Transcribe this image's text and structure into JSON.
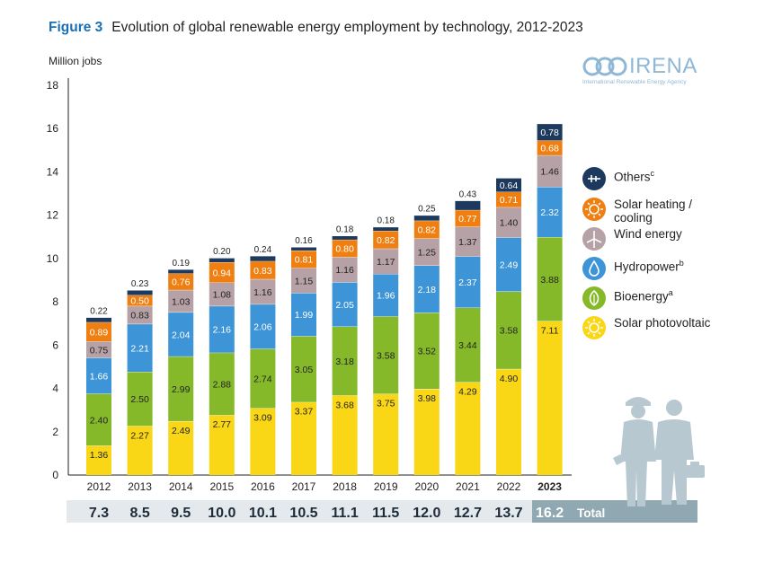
{
  "figure_label": "Figure 3",
  "title": "Evolution of global renewable energy employment by technology, 2012-2023",
  "y_unit_label": "Million jobs",
  "logo": {
    "name": "IRENA",
    "subtitle": "International Renewable Energy Agency"
  },
  "totals_label": "Total",
  "colors": {
    "solar_pv": "#f9d716",
    "bioenergy": "#86b92a",
    "hydropower": "#3d94d6",
    "wind": "#b6a2a6",
    "solar_heating": "#ee7f10",
    "others": "#1d3a5e",
    "totals_band": "#e3e9ec",
    "totals_highlight": "#8fa8b1"
  },
  "legend": [
    {
      "key": "others",
      "label": "Others",
      "sup": "c",
      "icon": "plug-icon"
    },
    {
      "key": "solar_heating",
      "label": "Solar heating / cooling",
      "sup": "",
      "icon": "sun-icon"
    },
    {
      "key": "wind",
      "label": "Wind energy",
      "sup": "",
      "icon": "wind-turbine-icon"
    },
    {
      "key": "hydropower",
      "label": "Hydropower",
      "sup": "b",
      "icon": "water-drop-icon"
    },
    {
      "key": "bioenergy",
      "label": "Bioenergy",
      "sup": "a",
      "icon": "leaf-icon"
    },
    {
      "key": "solar_pv",
      "label": "Solar photovoltaic",
      "sup": "",
      "icon": "sun-outline-icon"
    }
  ],
  "chart_data": {
    "type": "bar",
    "stacked": true,
    "ylabel": "Million jobs",
    "ylim": [
      0,
      18
    ],
    "yticks": [
      0,
      2,
      4,
      6,
      8,
      10,
      12,
      14,
      16,
      18
    ],
    "categories": [
      "2012",
      "2013",
      "2014",
      "2015",
      "2016",
      "2017",
      "2018",
      "2019",
      "2020",
      "2021",
      "2022",
      "2023"
    ],
    "highlight_category": "2023",
    "series": [
      {
        "key": "solar_pv",
        "name": "Solar photovoltaic",
        "values": [
          1.36,
          2.27,
          2.49,
          2.77,
          3.09,
          3.37,
          3.68,
          3.75,
          3.98,
          4.29,
          4.9,
          7.11
        ]
      },
      {
        "key": "bioenergy",
        "name": "Bioenergy",
        "values": [
          2.4,
          2.5,
          2.99,
          2.88,
          2.74,
          3.05,
          3.18,
          3.58,
          3.52,
          3.44,
          3.58,
          3.88
        ]
      },
      {
        "key": "hydropower",
        "name": "Hydropower",
        "values": [
          1.66,
          2.21,
          2.04,
          2.16,
          2.06,
          1.99,
          2.05,
          1.96,
          2.18,
          2.37,
          2.49,
          2.32
        ]
      },
      {
        "key": "wind",
        "name": "Wind energy",
        "values": [
          0.75,
          0.83,
          1.03,
          1.08,
          1.16,
          1.15,
          1.16,
          1.17,
          1.25,
          1.37,
          1.4,
          1.46
        ]
      },
      {
        "key": "solar_heating",
        "name": "Solar heating / cooling",
        "values": [
          0.89,
          0.5,
          0.76,
          0.94,
          0.83,
          0.81,
          0.8,
          0.82,
          0.82,
          0.77,
          0.71,
          0.68
        ]
      },
      {
        "key": "others",
        "name": "Others",
        "values": [
          0.22,
          0.23,
          0.19,
          0.2,
          0.24,
          0.16,
          0.18,
          0.18,
          0.25,
          0.43,
          0.64,
          0.78
        ]
      }
    ],
    "value_labels": {
      "solar_pv": [
        "1.36",
        "2.27",
        "2.49",
        "2.77",
        "3.09",
        "3.37",
        "3.68",
        "3.75",
        "3.98",
        "4.29",
        "4.90",
        "7.11"
      ],
      "bioenergy": [
        "2.40",
        "2.50",
        "2.99",
        "2.88",
        "2.74",
        "3.05",
        "3.18",
        "3.58",
        "3.52",
        "3.44",
        "3.58",
        "3.88"
      ],
      "hydropower": [
        "1.66",
        "2.21",
        "2.04",
        "2.16",
        "2.06",
        "1.99",
        "2.05",
        "1.96",
        "2.18",
        "2.37",
        "2.49",
        "2.32"
      ],
      "wind": [
        "0.75",
        "0.83",
        "1.03",
        "1.08",
        "1.16",
        "1.15",
        "1.16",
        "1.17",
        "1.25",
        "1.37",
        "1.40",
        "1.46"
      ],
      "solar_heating": [
        "0.89",
        "0.50",
        "0.76",
        "0.94",
        "0.83",
        "0.81",
        "0.80",
        "0.82",
        "0.82",
        "0.77",
        "0.71",
        "0.68"
      ],
      "others": [
        "0.22",
        "0.23",
        "0.19",
        "0.20",
        "0.24",
        "0.16",
        "0.18",
        "0.18",
        "0.25",
        "0.43",
        "0.64",
        "0.78"
      ]
    },
    "totals": [
      "7.3",
      "8.5",
      "9.5",
      "10.0",
      "10.1",
      "10.5",
      "11.1",
      "11.5",
      "12.0",
      "12.7",
      "13.7",
      "16.2"
    ]
  }
}
